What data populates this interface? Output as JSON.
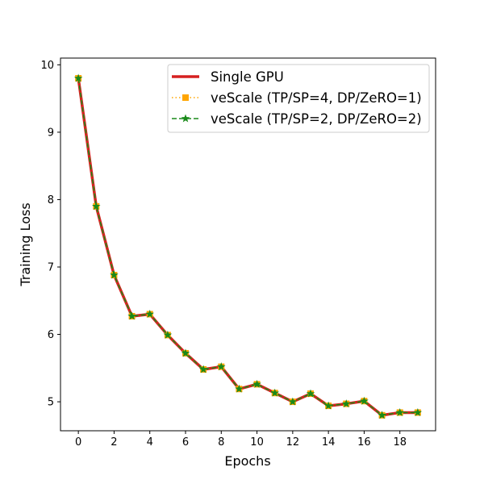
{
  "chart_data": {
    "type": "line",
    "title": "",
    "xlabel": "Epochs",
    "ylabel": "Training Loss",
    "xlim": [
      -1,
      20
    ],
    "ylim": [
      4.57,
      10.1
    ],
    "xticks": [
      0,
      2,
      4,
      6,
      8,
      10,
      12,
      14,
      16,
      18
    ],
    "yticks": [
      5,
      6,
      7,
      8,
      9,
      10
    ],
    "grid": false,
    "legend_position": "upper-right",
    "x": [
      0,
      1,
      2,
      3,
      4,
      5,
      6,
      7,
      8,
      9,
      10,
      11,
      12,
      13,
      14,
      15,
      16,
      17,
      18,
      19
    ],
    "series": [
      {
        "name": "Single GPU",
        "color": "#d62020",
        "line_style": "solid",
        "marker": "none",
        "values": [
          9.8,
          7.9,
          6.88,
          6.27,
          6.3,
          5.99,
          5.72,
          5.48,
          5.52,
          5.19,
          5.26,
          5.13,
          5.0,
          5.12,
          4.94,
          4.97,
          5.01,
          4.8,
          4.84,
          4.84
        ]
      },
      {
        "name": "veScale (TP/SP=4, DP/ZeRO=1)",
        "color": "#ffa500",
        "line_style": "dotted",
        "marker": "square",
        "values": [
          9.8,
          7.9,
          6.88,
          6.27,
          6.3,
          5.99,
          5.72,
          5.48,
          5.52,
          5.19,
          5.26,
          5.13,
          5.0,
          5.12,
          4.94,
          4.97,
          5.01,
          4.8,
          4.84,
          4.84
        ]
      },
      {
        "name": "veScale (TP/SP=2, DP/ZeRO=2)",
        "color": "#1a8a1a",
        "line_style": "dashed",
        "marker": "star",
        "values": [
          9.8,
          7.9,
          6.88,
          6.27,
          6.3,
          5.99,
          5.72,
          5.48,
          5.52,
          5.19,
          5.26,
          5.13,
          5.0,
          5.12,
          4.94,
          4.97,
          5.01,
          4.8,
          4.84,
          4.84
        ]
      }
    ]
  }
}
